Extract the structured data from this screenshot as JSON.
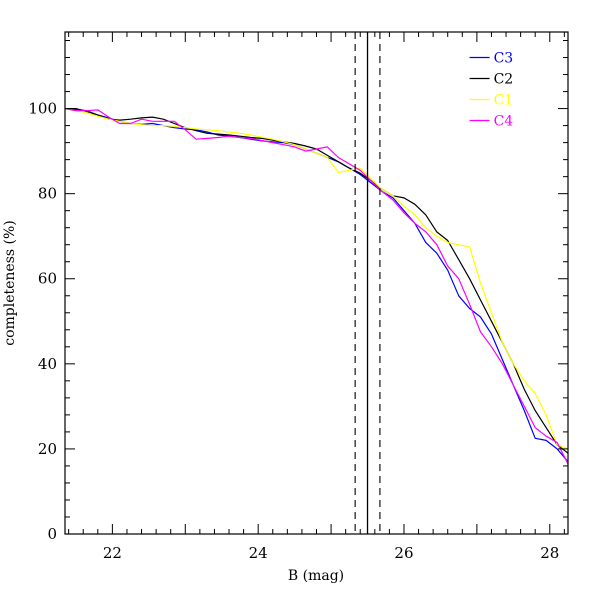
{
  "chart_data": {
    "type": "line",
    "title": "",
    "xlabel": "B (mag)",
    "ylabel": "completeness (%)",
    "xlim": [
      21.35,
      28.25
    ],
    "ylim": [
      0,
      118
    ],
    "xticks": [
      22,
      24,
      26,
      28
    ],
    "yticks": [
      0,
      20,
      40,
      60,
      80,
      100
    ],
    "legend_position": "top-right",
    "grid": false,
    "series": [
      {
        "name": "C3",
        "color": "#0000ff",
        "x": [
          21.35,
          21.5,
          21.65,
          21.8,
          21.95,
          22.1,
          22.25,
          22.4,
          22.55,
          22.7,
          22.85,
          23.0,
          23.15,
          23.3,
          23.45,
          23.6,
          23.75,
          23.9,
          24.05,
          24.2,
          24.35,
          24.5,
          24.65,
          24.8,
          24.95,
          25.1,
          25.25,
          25.4,
          25.55,
          25.7,
          25.85,
          26.0,
          26.15,
          26.3,
          26.45,
          26.6,
          26.75,
          26.9,
          27.05,
          27.2,
          27.35,
          27.5,
          27.65,
          27.8,
          27.95,
          28.1,
          28.25
        ],
        "y": [
          100,
          99.8,
          99.5,
          98.5,
          97.8,
          97,
          96.5,
          96.3,
          96.5,
          96,
          95.5,
          95.2,
          95,
          94.5,
          93.8,
          93.5,
          93.2,
          92.8,
          92.4,
          92.2,
          92,
          91.5,
          90.5,
          89.5,
          88.5,
          87.5,
          86,
          84.5,
          82.5,
          80.5,
          79,
          76,
          73,
          68.5,
          66,
          62,
          56,
          53,
          51,
          47,
          41,
          35,
          29,
          22.5,
          22,
          20,
          17
        ]
      },
      {
        "name": "C2",
        "color": "#000000",
        "x": [
          21.35,
          21.5,
          21.65,
          21.8,
          21.95,
          22.1,
          22.25,
          22.4,
          22.55,
          22.7,
          22.85,
          23.0,
          23.15,
          23.3,
          23.45,
          23.6,
          23.75,
          23.9,
          24.05,
          24.2,
          24.35,
          24.5,
          24.65,
          24.8,
          24.95,
          25.1,
          25.25,
          25.4,
          25.55,
          25.7,
          25.85,
          26.0,
          26.15,
          26.3,
          26.45,
          26.6,
          26.75,
          26.9,
          27.05,
          27.2,
          27.35,
          27.5,
          27.65,
          27.8,
          27.95,
          28.1,
          28.25
        ],
        "y": [
          100,
          100,
          99.3,
          98.5,
          97.5,
          97.3,
          97.5,
          97.8,
          98,
          97.5,
          96.5,
          95.5,
          94.8,
          94.2,
          94,
          93.8,
          93.5,
          93.2,
          93,
          92.6,
          92.2,
          91.8,
          91.2,
          90.5,
          89,
          87.5,
          86,
          84.8,
          83,
          81,
          79.5,
          79,
          77.5,
          75,
          71,
          69,
          64.5,
          60,
          55,
          50,
          45,
          40,
          34,
          29,
          25,
          21,
          19
        ]
      },
      {
        "name": "C1",
        "color": "#ffff00",
        "x": [
          21.35,
          21.5,
          21.65,
          21.8,
          21.95,
          22.1,
          22.25,
          22.4,
          22.55,
          22.7,
          22.85,
          23.0,
          23.15,
          23.3,
          23.45,
          23.6,
          23.75,
          23.9,
          24.05,
          24.2,
          24.35,
          24.5,
          24.65,
          24.8,
          24.95,
          25.1,
          25.25,
          25.4,
          25.55,
          25.7,
          25.85,
          26.0,
          26.15,
          26.3,
          26.45,
          26.6,
          26.75,
          26.9,
          27.05,
          27.2,
          27.35,
          27.5,
          27.65,
          27.8,
          27.95,
          28.1,
          28.25
        ],
        "y": [
          100,
          99.5,
          99,
          98.2,
          97.5,
          97,
          96.5,
          96.2,
          96,
          96,
          95.8,
          95.5,
          95.2,
          95,
          94.8,
          94.5,
          94.2,
          93.8,
          93.3,
          92.8,
          92.2,
          91.5,
          90.5,
          89.5,
          88.5,
          85,
          85.5,
          86,
          83.5,
          81,
          79.5,
          77,
          75,
          72,
          70,
          68.5,
          68,
          67.5,
          59,
          52,
          45,
          40,
          36,
          33,
          28,
          21,
          20
        ]
      },
      {
        "name": "C4",
        "color": "#ff00ff",
        "x": [
          21.35,
          21.5,
          21.65,
          21.8,
          21.95,
          22.1,
          22.25,
          22.4,
          22.55,
          22.7,
          22.85,
          23.0,
          23.15,
          23.3,
          23.45,
          23.6,
          23.75,
          23.9,
          24.05,
          24.2,
          24.35,
          24.5,
          24.65,
          24.8,
          24.95,
          25.1,
          25.25,
          25.4,
          25.55,
          25.7,
          25.85,
          26.0,
          26.15,
          26.3,
          26.45,
          26.6,
          26.75,
          26.9,
          27.05,
          27.2,
          27.35,
          27.5,
          27.65,
          27.8,
          27.95,
          28.1,
          28.25
        ],
        "y": [
          100,
          99.5,
          99.5,
          99.7,
          98,
          96.5,
          96.5,
          97.5,
          97,
          97,
          97,
          95,
          92.8,
          93,
          93.2,
          93.5,
          93.2,
          93,
          92.5,
          92,
          91.5,
          91,
          90,
          90.5,
          91,
          88.5,
          87,
          85.5,
          83,
          80.5,
          78.5,
          75.5,
          73,
          71,
          68,
          63,
          60,
          54,
          47.5,
          44,
          40,
          35,
          30,
          25,
          23,
          21.5,
          16.5
        ]
      }
    ]
  },
  "markers": {
    "solid_line_x": 25.5,
    "dashed_lines_x": [
      25.33,
      25.67
    ]
  }
}
